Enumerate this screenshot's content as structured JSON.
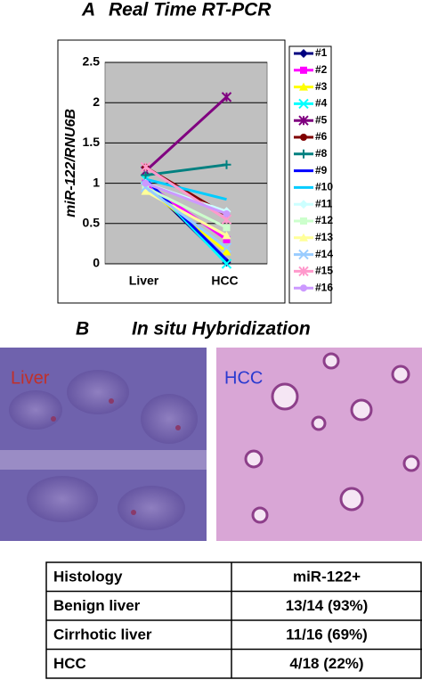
{
  "panel_a_label": "A",
  "chart_data": {
    "type": "line",
    "title": "Real Time RT-PCR",
    "y_label": "miR-122/RNU6B",
    "categories": [
      "Liver",
      "HCC"
    ],
    "ylim": [
      0,
      2.5
    ],
    "yticks": [
      0,
      0.5,
      1,
      1.5,
      2,
      2.5
    ],
    "grid": true,
    "legend": "right",
    "series": [
      {
        "name": "#1",
        "color": "#000080",
        "marker": "diamond",
        "values": [
          1.0,
          0.02
        ]
      },
      {
        "name": "#2",
        "color": "#ff00ff",
        "marker": "square",
        "values": [
          1.0,
          0.3
        ]
      },
      {
        "name": "#3",
        "color": "#ffff00",
        "marker": "triangle",
        "values": [
          0.95,
          0.15
        ]
      },
      {
        "name": "#4",
        "color": "#00ffff",
        "marker": "x",
        "values": [
          1.05,
          0.0
        ]
      },
      {
        "name": "#5",
        "color": "#800080",
        "marker": "star",
        "values": [
          1.15,
          2.07
        ]
      },
      {
        "name": "#6",
        "color": "#800000",
        "marker": "circle",
        "values": [
          1.2,
          0.6
        ]
      },
      {
        "name": "#8",
        "color": "#008080",
        "marker": "plus",
        "values": [
          1.1,
          1.23
        ]
      },
      {
        "name": "#9",
        "color": "#0000ff",
        "marker": "none",
        "values": [
          1.05,
          0.05
        ]
      },
      {
        "name": "#10",
        "color": "#00ccff",
        "marker": "none",
        "values": [
          1.05,
          0.8
        ]
      },
      {
        "name": "#11",
        "color": "#ccffff",
        "marker": "diamond",
        "values": [
          1.0,
          0.65
        ]
      },
      {
        "name": "#12",
        "color": "#ccffcc",
        "marker": "square",
        "values": [
          0.95,
          0.45
        ]
      },
      {
        "name": "#13",
        "color": "#ffff99",
        "marker": "triangle",
        "values": [
          0.9,
          0.35
        ]
      },
      {
        "name": "#14",
        "color": "#99ccff",
        "marker": "x",
        "values": [
          0.95,
          0.2
        ]
      },
      {
        "name": "#15",
        "color": "#ff99cc",
        "marker": "star",
        "values": [
          1.2,
          0.55
        ]
      },
      {
        "name": "#16",
        "color": "#cc99ff",
        "marker": "circle",
        "values": [
          1.0,
          0.62
        ]
      }
    ]
  },
  "panel_b": {
    "label": "B",
    "title": "In situ Hybridization",
    "images": [
      {
        "label": "Liver"
      },
      {
        "label": "HCC"
      }
    ]
  },
  "table": {
    "rows": [
      [
        "Histology",
        "miR-122+"
      ],
      [
        "Benign liver",
        "13/14 (93%)"
      ],
      [
        "Cirrhotic liver",
        "11/16 (69%)"
      ],
      [
        "HCC",
        "4/18 (22%)"
      ]
    ]
  }
}
